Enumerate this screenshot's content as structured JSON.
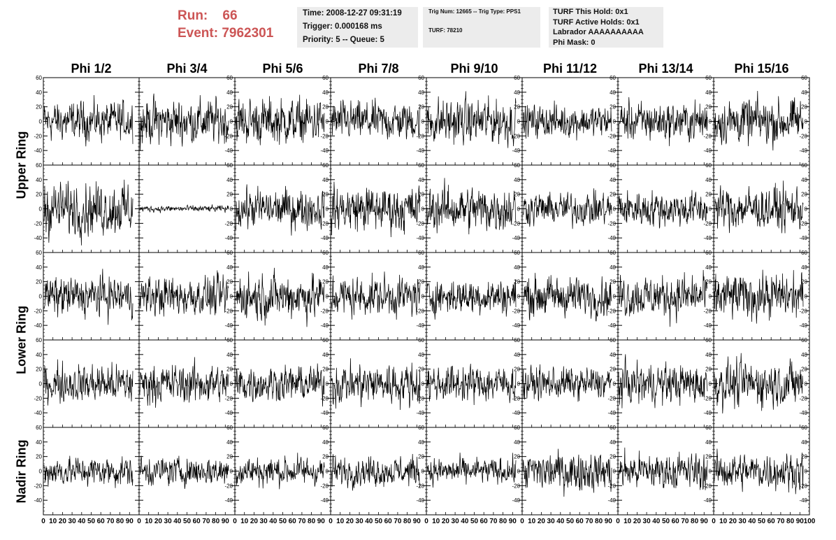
{
  "header": {
    "run_line": "Run:    66",
    "event_line": "Event: 7962301",
    "box1": [
      "Time: 2008-12-27 09:31:19",
      "Trigger: 0.000168 ms",
      "Priority: 5 -- Queue: 5"
    ],
    "box2": [
      "Trig Num: 12665 -- Trig Type: PPS1",
      "TURF: 78210"
    ],
    "box3": [
      "TURF This Hold: 0x1",
      "TURF Active Holds: 0x1",
      "Labrador AAAAAAAAAA",
      "Phi Mask: 0"
    ]
  },
  "columns": [
    "Phi 1/2",
    "Phi 3/4",
    "Phi 5/6",
    "Phi 7/8",
    "Phi 9/10",
    "Phi 11/12",
    "Phi 13/14",
    "Phi 15/16"
  ],
  "rows": [
    {
      "label": "Upper Ring",
      "span": [
        0,
        1
      ]
    },
    {
      "label": "Lower Ring",
      "span": [
        2,
        3
      ]
    },
    {
      "label": "Nadir Ring",
      "span": [
        4,
        4
      ]
    }
  ],
  "chart_data": {
    "type": "line",
    "title": "",
    "xlabel": "",
    "ylabel": "",
    "grid": false,
    "xlim": [
      0,
      100
    ],
    "ylim": [
      -60,
      60
    ],
    "y_ticks": [
      -60,
      -40,
      -20,
      0,
      20,
      40,
      60
    ],
    "y_tick_labels": [
      "-40",
      "-20",
      "0",
      "20",
      "40",
      "60"
    ],
    "x_tick_labels": [
      "0",
      "10",
      "20",
      "30",
      "40",
      "50",
      "60",
      "70",
      "80",
      "90",
      "100"
    ],
    "n_samples": 260,
    "panel_amplitude": [
      [
        12,
        14,
        14,
        12,
        14,
        10,
        12,
        14
      ],
      [
        16,
        2,
        12,
        14,
        14,
        10,
        11,
        13
      ],
      [
        12,
        12,
        14,
        12,
        11,
        12,
        13,
        14
      ],
      [
        12,
        12,
        11,
        13,
        11,
        10,
        12,
        14
      ],
      [
        9,
        9,
        9,
        9,
        8,
        12,
        11,
        11
      ]
    ],
    "note_ranges": "Each panel shows one waveform trace (voltage vs time) oscillating roughly within -40..+40"
  }
}
